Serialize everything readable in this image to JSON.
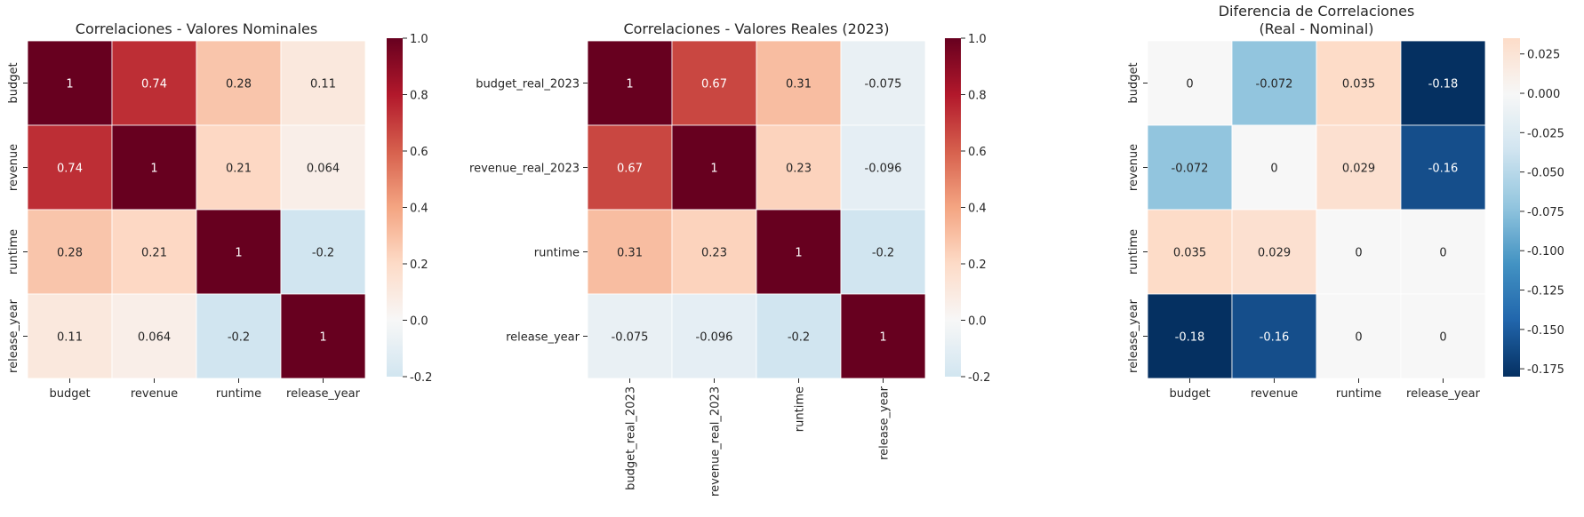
{
  "chart_data": [
    {
      "type": "heatmap",
      "title": "Correlaciones - Valores Nominales",
      "x_labels": [
        "budget",
        "revenue",
        "runtime",
        "release_year"
      ],
      "y_labels": [
        "budget",
        "revenue",
        "runtime",
        "release_year"
      ],
      "values": [
        [
          1,
          0.74,
          0.28,
          0.11
        ],
        [
          0.74,
          1,
          0.21,
          0.064
        ],
        [
          0.28,
          0.21,
          1,
          -0.2
        ],
        [
          0.11,
          0.064,
          -0.2,
          1
        ]
      ],
      "cell_labels": [
        [
          "1",
          "0.74",
          "0.28",
          "0.11"
        ],
        [
          "0.74",
          "1",
          "0.21",
          "0.064"
        ],
        [
          "0.28",
          "0.21",
          "1",
          "-0.2"
        ],
        [
          "0.11",
          "0.064",
          "-0.2",
          "1"
        ]
      ],
      "colormap": "RdBu_r",
      "center": 0,
      "vmin": -0.2,
      "vmax": 1,
      "colorbar_ticks": [
        "-0.2",
        "0.0",
        "0.2",
        "0.4",
        "0.6",
        "0.8",
        "1.0"
      ],
      "colorbar_tick_values": [
        -0.2,
        0,
        0.2,
        0.4,
        0.6,
        0.8,
        1.0
      ]
    },
    {
      "type": "heatmap",
      "title": "Correlaciones - Valores Reales (2023)",
      "x_labels": [
        "budget_real_2023",
        "revenue_real_2023",
        "runtime",
        "release_year"
      ],
      "y_labels": [
        "budget_real_2023",
        "revenue_real_2023",
        "runtime",
        "release_year"
      ],
      "values": [
        [
          1,
          0.67,
          0.31,
          -0.075
        ],
        [
          0.67,
          1,
          0.23,
          -0.096
        ],
        [
          0.31,
          0.23,
          1,
          -0.2
        ],
        [
          -0.075,
          -0.096,
          -0.2,
          1
        ]
      ],
      "cell_labels": [
        [
          "1",
          "0.67",
          "0.31",
          "-0.075"
        ],
        [
          "0.67",
          "1",
          "0.23",
          "-0.096"
        ],
        [
          "0.31",
          "0.23",
          "1",
          "-0.2"
        ],
        [
          "-0.075",
          "-0.096",
          "-0.2",
          "1"
        ]
      ],
      "colormap": "RdBu_r",
      "center": 0,
      "vmin": -0.2,
      "vmax": 1,
      "colorbar_ticks": [
        "-0.2",
        "0.0",
        "0.2",
        "0.4",
        "0.6",
        "0.8",
        "1.0"
      ],
      "colorbar_tick_values": [
        -0.2,
        0,
        0.2,
        0.4,
        0.6,
        0.8,
        1.0
      ]
    },
    {
      "type": "heatmap",
      "title": "Diferencia de Correlaciones\n(Real - Nominal)",
      "x_labels": [
        "budget",
        "revenue",
        "runtime",
        "release_year"
      ],
      "y_labels": [
        "budget",
        "revenue",
        "runtime",
        "release_year"
      ],
      "values": [
        [
          0,
          -0.072,
          0.035,
          -0.18
        ],
        [
          -0.072,
          0,
          0.029,
          -0.16
        ],
        [
          0.035,
          0.029,
          0,
          0
        ],
        [
          -0.18,
          -0.16,
          0,
          0
        ]
      ],
      "cell_labels": [
        [
          "0",
          "-0.072",
          "0.035",
          "-0.18"
        ],
        [
          "-0.072",
          "0",
          "0.029",
          "-0.16"
        ],
        [
          "0.035",
          "0.029",
          "0",
          "0"
        ],
        [
          "-0.18",
          "-0.16",
          "0",
          "0"
        ]
      ],
      "colormap": "RdBu_r",
      "center": 0,
      "vmin": -0.18,
      "vmax": 0.035,
      "colorbar_ticks": [
        "0.025",
        "0.000",
        "-0.025",
        "-0.050",
        "-0.075",
        "-0.100",
        "-0.125",
        "-0.150",
        "-0.175"
      ],
      "colorbar_tick_values": [
        0.025,
        0,
        -0.025,
        -0.05,
        -0.075,
        -0.1,
        -0.125,
        -0.15,
        -0.175
      ]
    }
  ]
}
